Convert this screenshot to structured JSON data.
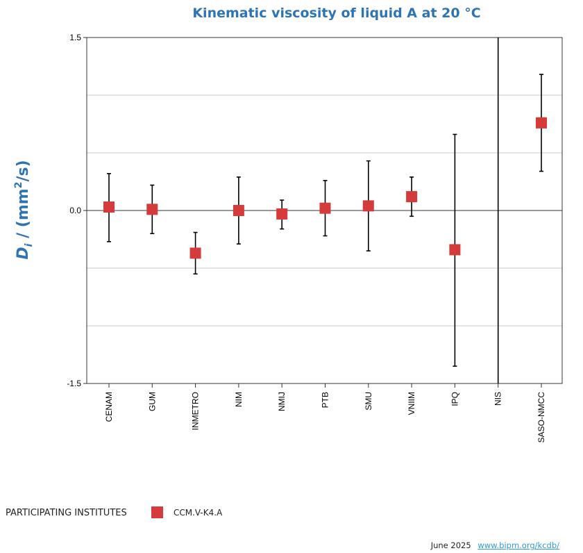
{
  "chart_data": {
    "type": "scatter",
    "title": "Kinematic viscosity of liquid A at 20 °C",
    "ylabel_var": "D",
    "ylabel_sub": "i",
    "ylabel_unit_pre": " / (mm",
    "ylabel_unit_sup": "2",
    "ylabel_unit_post": "/s)",
    "ylim": [
      -1.5,
      1.5
    ],
    "ytick_labels": [
      "1.5",
      "0.0",
      "-1.5"
    ],
    "ytick_values": [
      1.5,
      0.0,
      -1.5
    ],
    "gridlines": [
      1.0,
      0.5,
      -0.5,
      -1.0
    ],
    "categories": [
      "CENAM",
      "GUM",
      "INMETRO",
      "NIM",
      "NMIJ",
      "PTB",
      "SMU",
      "VNIIM",
      "IPQ",
      "NIS",
      "SASO-NMCC"
    ],
    "series": [
      {
        "name": "CCM.V-K4.A",
        "color": "#d63b3b",
        "values": [
          0.03,
          0.01,
          -0.37,
          0.0,
          -0.03,
          0.02,
          0.04,
          0.12,
          -0.34,
          null,
          0.76
        ],
        "err_low": [
          -0.27,
          -0.2,
          -0.55,
          -0.29,
          -0.16,
          -0.22,
          -0.35,
          -0.05,
          -1.35,
          -1.5,
          0.34
        ],
        "err_high": [
          0.32,
          0.22,
          -0.19,
          0.29,
          0.09,
          0.26,
          0.43,
          0.29,
          0.66,
          1.5,
          1.18
        ]
      }
    ]
  },
  "legend": {
    "heading": "PARTICIPATING INSTITUTES",
    "series_label": "CCM.V-K4.A"
  },
  "footer": {
    "date": "June 2025",
    "link_text": "www.bipm.org/kcdb/"
  }
}
